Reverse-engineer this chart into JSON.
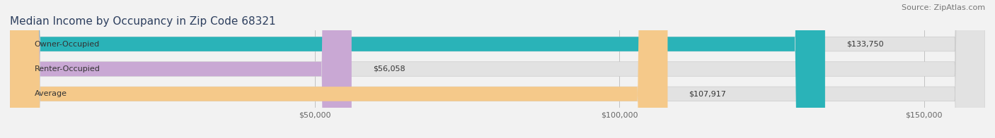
{
  "title": "Median Income by Occupancy in Zip Code 68321",
  "source": "Source: ZipAtlas.com",
  "categories": [
    "Owner-Occupied",
    "Renter-Occupied",
    "Average"
  ],
  "values": [
    133750,
    56058,
    107917
  ],
  "value_labels": [
    "$133,750",
    "$56,058",
    "$107,917"
  ],
  "bar_colors": [
    "#2ab3b8",
    "#c9a8d4",
    "#f5c98a"
  ],
  "background_color": "#f2f2f2",
  "bar_background_color": "#e2e2e2",
  "title_color": "#2d3f5e",
  "source_color": "#777777",
  "label_color": "#333333",
  "tick_color": "#666666",
  "xmax": 160000,
  "xticks": [
    50000,
    100000,
    150000
  ],
  "xtick_labels": [
    "$50,000",
    "$100,000",
    "$150,000"
  ],
  "title_fontsize": 11,
  "source_fontsize": 8,
  "bar_label_fontsize": 8,
  "category_fontsize": 8,
  "tick_fontsize": 8,
  "bar_height": 0.58,
  "figsize": [
    14.06,
    1.96
  ],
  "dpi": 100
}
